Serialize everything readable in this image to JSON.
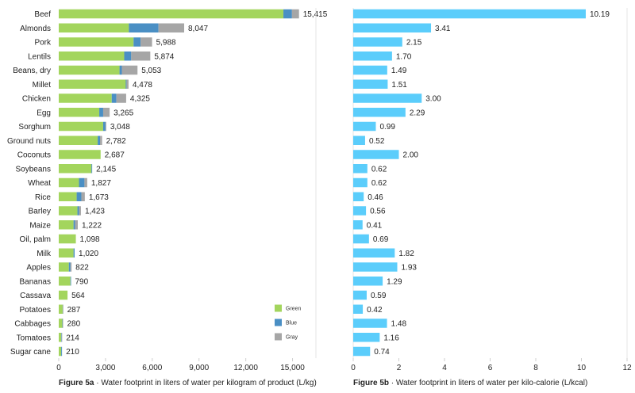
{
  "chart_data": [
    {
      "type": "bar",
      "orientation": "horizontal",
      "stacked": true,
      "figure_label": "Figure 5a",
      "separator": "·",
      "caption": "Water footprint in liters of water per kilogram of product (L/kg)",
      "categories": [
        "Beef",
        "Almonds",
        "Pork",
        "Lentils",
        "Beans, dry",
        "Millet",
        "Chicken",
        "Egg",
        "Sorghum",
        "Ground nuts",
        "Coconuts",
        "Soybeans",
        "Wheat",
        "Rice",
        "Barley",
        "Maize",
        "Oil, palm",
        "Milk",
        "Apples",
        "Bananas",
        "Cassava",
        "Potatoes",
        "Cabbages",
        "Tomatoes",
        "Sugar cane"
      ],
      "totals": [
        "15,415",
        "8,047",
        "5,988",
        "5,874",
        "5,053",
        "4,478",
        "4,325",
        "3,265",
        "3,048",
        "2,782",
        "2,687",
        "2,145",
        "1,827",
        "1,673",
        "1,423",
        "1,222",
        "1,098",
        "1,020",
        "822",
        "790",
        "564",
        "287",
        "280",
        "214",
        "210"
      ],
      "series": [
        {
          "name": "Green",
          "color": "#a3d55d",
          "values": [
            14414,
            4500,
            4800,
            4200,
            3900,
            4300,
            3400,
            2600,
            2850,
            2500,
            2687,
            2100,
            1300,
            1150,
            1200,
            950,
            1098,
            950,
            650,
            750,
            564,
            250,
            230,
            160,
            160
          ]
        },
        {
          "name": "Blue",
          "color": "#4a8fc4",
          "values": [
            550,
            1900,
            450,
            450,
            150,
            50,
            300,
            250,
            150,
            150,
            0,
            45,
            350,
            300,
            100,
            100,
            0,
            70,
            100,
            40,
            0,
            10,
            20,
            30,
            50
          ]
        },
        {
          "name": "Gray",
          "color": "#a6a6a6",
          "values": [
            451,
            1647,
            738,
            1224,
            1003,
            128,
            625,
            415,
            48,
            132,
            0,
            0,
            177,
            223,
            123,
            172,
            0,
            0,
            72,
            0,
            0,
            27,
            30,
            24,
            0
          ]
        }
      ],
      "xticks": [
        "0",
        "3,000",
        "6,000",
        "9,000",
        "12,000",
        "15,000"
      ],
      "xlim": [
        0,
        16500
      ]
    },
    {
      "type": "bar",
      "orientation": "horizontal",
      "figure_label": "Figure 5b",
      "separator": "·",
      "caption": "Water footprint in liters of water per kilo-calorie (L/kcal)",
      "categories": [
        "Beef",
        "Almonds",
        "Pork",
        "Lentils",
        "Beans, dry",
        "Millet",
        "Chicken",
        "Egg",
        "Sorghum",
        "Ground nuts",
        "Coconuts",
        "Soybeans",
        "Wheat",
        "Rice",
        "Barley",
        "Maize",
        "Oil, palm",
        "Milk",
        "Apples",
        "Bananas",
        "Cassava",
        "Potatoes",
        "Cabbages",
        "Tomatoes",
        "Sugar cane"
      ],
      "values": [
        10.19,
        3.41,
        2.15,
        1.7,
        1.49,
        1.51,
        3.0,
        2.29,
        0.99,
        0.52,
        2.0,
        0.62,
        0.62,
        0.46,
        0.56,
        0.41,
        0.69,
        1.82,
        1.93,
        1.29,
        0.59,
        0.42,
        1.48,
        1.16,
        0.74
      ],
      "labels": [
        "10.19",
        "3.41",
        "2.15",
        "1.70",
        "1.49",
        "1.51",
        "3.00",
        "2.29",
        "0.99",
        "0.52",
        "2.00",
        "0.62",
        "0.62",
        "0.46",
        "0.56",
        "0.41",
        "0.69",
        "1.82",
        "1.93",
        "1.29",
        "0.59",
        "0.42",
        "1.48",
        "1.16",
        "0.74"
      ],
      "color": "#5bcdfb",
      "xticks": [
        "0",
        "2",
        "4",
        "6",
        "8",
        "10",
        "12"
      ],
      "xlim": [
        0,
        12
      ]
    }
  ]
}
